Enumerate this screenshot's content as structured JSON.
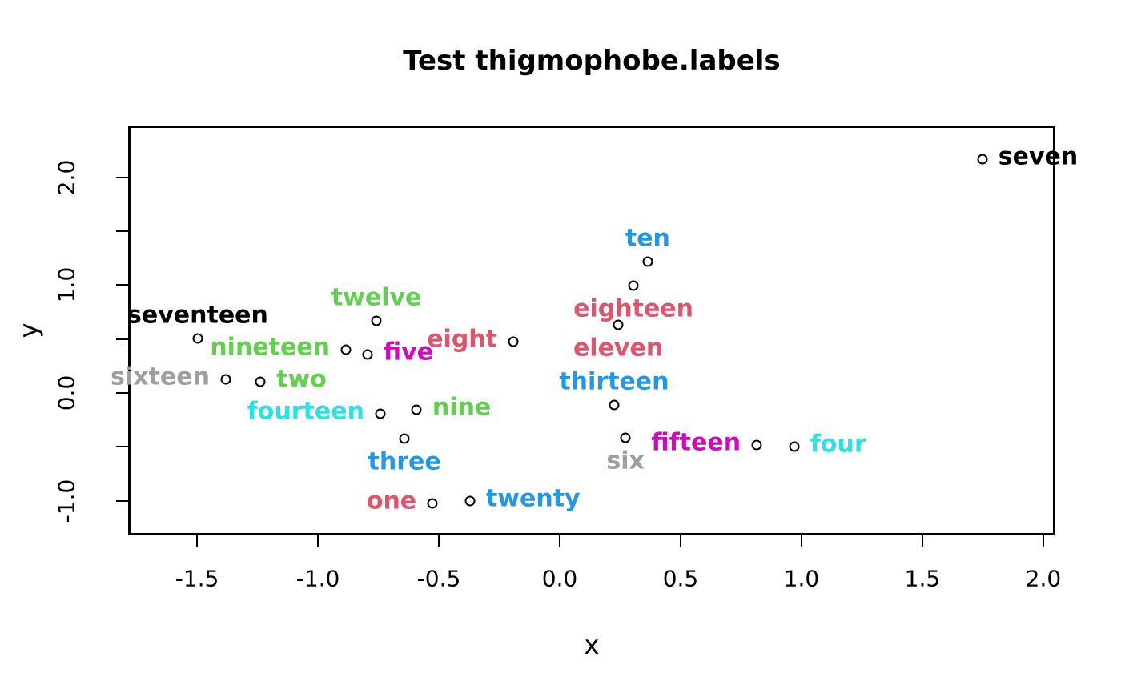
{
  "title": "Test thigmophobe.labels",
  "axis": {
    "x_label": "x",
    "y_label": "y",
    "x_ticks": [
      {
        "value": -1.5,
        "label": "-1.5"
      },
      {
        "value": -1.0,
        "label": "-1.0"
      },
      {
        "value": -0.5,
        "label": "-0.5"
      },
      {
        "value": 0.0,
        "label": "0.0"
      },
      {
        "value": 0.5,
        "label": "0.5"
      },
      {
        "value": 1.0,
        "label": "1.0"
      },
      {
        "value": 1.5,
        "label": "1.5"
      },
      {
        "value": 2.0,
        "label": "2.0"
      }
    ],
    "y_ticks": [
      {
        "value": -1.0,
        "label": "-1.0"
      },
      {
        "value": -0.5,
        "label": ""
      },
      {
        "value": 0.0,
        "label": "0.0"
      },
      {
        "value": 0.5,
        "label": ""
      },
      {
        "value": 1.0,
        "label": "1.0"
      },
      {
        "value": 1.5,
        "label": ""
      },
      {
        "value": 2.0,
        "label": "2.0"
      }
    ]
  },
  "palette": {
    "black": "#000000",
    "red": "#DF536B",
    "green": "#61D04F",
    "blue": "#2297E6",
    "cyan": "#28E2E5",
    "magenta": "#CD0BBC",
    "gray": "#9E9E9E"
  },
  "chart_data": {
    "type": "scatter",
    "title": "Test thigmophobe.labels",
    "xlabel": "x",
    "ylabel": "y",
    "xlim": [
      -1.785,
      2.05
    ],
    "ylim": [
      -1.323,
      2.483
    ],
    "grid": false,
    "legend": "none",
    "point_style": "open-circle",
    "points": [
      {
        "label": "one",
        "x": -0.526,
        "y": -1.026,
        "color": "#DF536B",
        "label_side": "left"
      },
      {
        "label": "two",
        "x": -1.238,
        "y": 0.104,
        "color": "#61D04F",
        "label_side": "right"
      },
      {
        "label": "three",
        "x": -0.642,
        "y": -0.424,
        "color": "#2297E6",
        "label_side": "below"
      },
      {
        "label": "four",
        "x": 0.97,
        "y": -0.498,
        "color": "#28E2E5",
        "label_side": "right"
      },
      {
        "label": "five",
        "x": -0.795,
        "y": 0.357,
        "color": "#CD0BBC",
        "label_side": "right"
      },
      {
        "label": "six",
        "x": 0.272,
        "y": -0.416,
        "color": "#9E9E9E",
        "label_side": "below"
      },
      {
        "label": "seven",
        "x": 1.748,
        "y": 2.171,
        "color": "#000000",
        "label_side": "right"
      },
      {
        "label": "eight",
        "x": -0.192,
        "y": 0.476,
        "color": "#DF536B",
        "label_side": "left"
      },
      {
        "label": "nine",
        "x": -0.593,
        "y": -0.156,
        "color": "#61D04F",
        "label_side": "right"
      },
      {
        "label": "ten",
        "x": 0.364,
        "y": 1.219,
        "color": "#2297E6",
        "label_side": "above"
      },
      {
        "label": "eleven",
        "x": 0.242,
        "y": 0.632,
        "color": "#DF536B",
        "label_side": "below"
      },
      {
        "label": "twelve",
        "x": -0.758,
        "y": 0.669,
        "color": "#61D04F",
        "label_side": "above"
      },
      {
        "label": "thirteen",
        "x": 0.225,
        "y": -0.112,
        "color": "#2297E6",
        "label_side": "above"
      },
      {
        "label": "fourteen",
        "x": -0.742,
        "y": -0.193,
        "color": "#28E2E5",
        "label_side": "left"
      },
      {
        "label": "fifteen",
        "x": 0.815,
        "y": -0.483,
        "color": "#CD0BBC",
        "label_side": "left"
      },
      {
        "label": "sixteen",
        "x": -1.381,
        "y": 0.126,
        "color": "#9E9E9E",
        "label_side": "left"
      },
      {
        "label": "seventeen",
        "x": -1.497,
        "y": 0.506,
        "color": "#000000",
        "label_side": "above"
      },
      {
        "label": "eighteen",
        "x": 0.305,
        "y": 0.996,
        "color": "#DF536B",
        "label_side": "below"
      },
      {
        "label": "nineteen",
        "x": -0.884,
        "y": 0.401,
        "color": "#61D04F",
        "label_side": "left"
      },
      {
        "label": "twenty",
        "x": -0.371,
        "y": -1.004,
        "color": "#2297E6",
        "label_side": "right"
      }
    ]
  }
}
